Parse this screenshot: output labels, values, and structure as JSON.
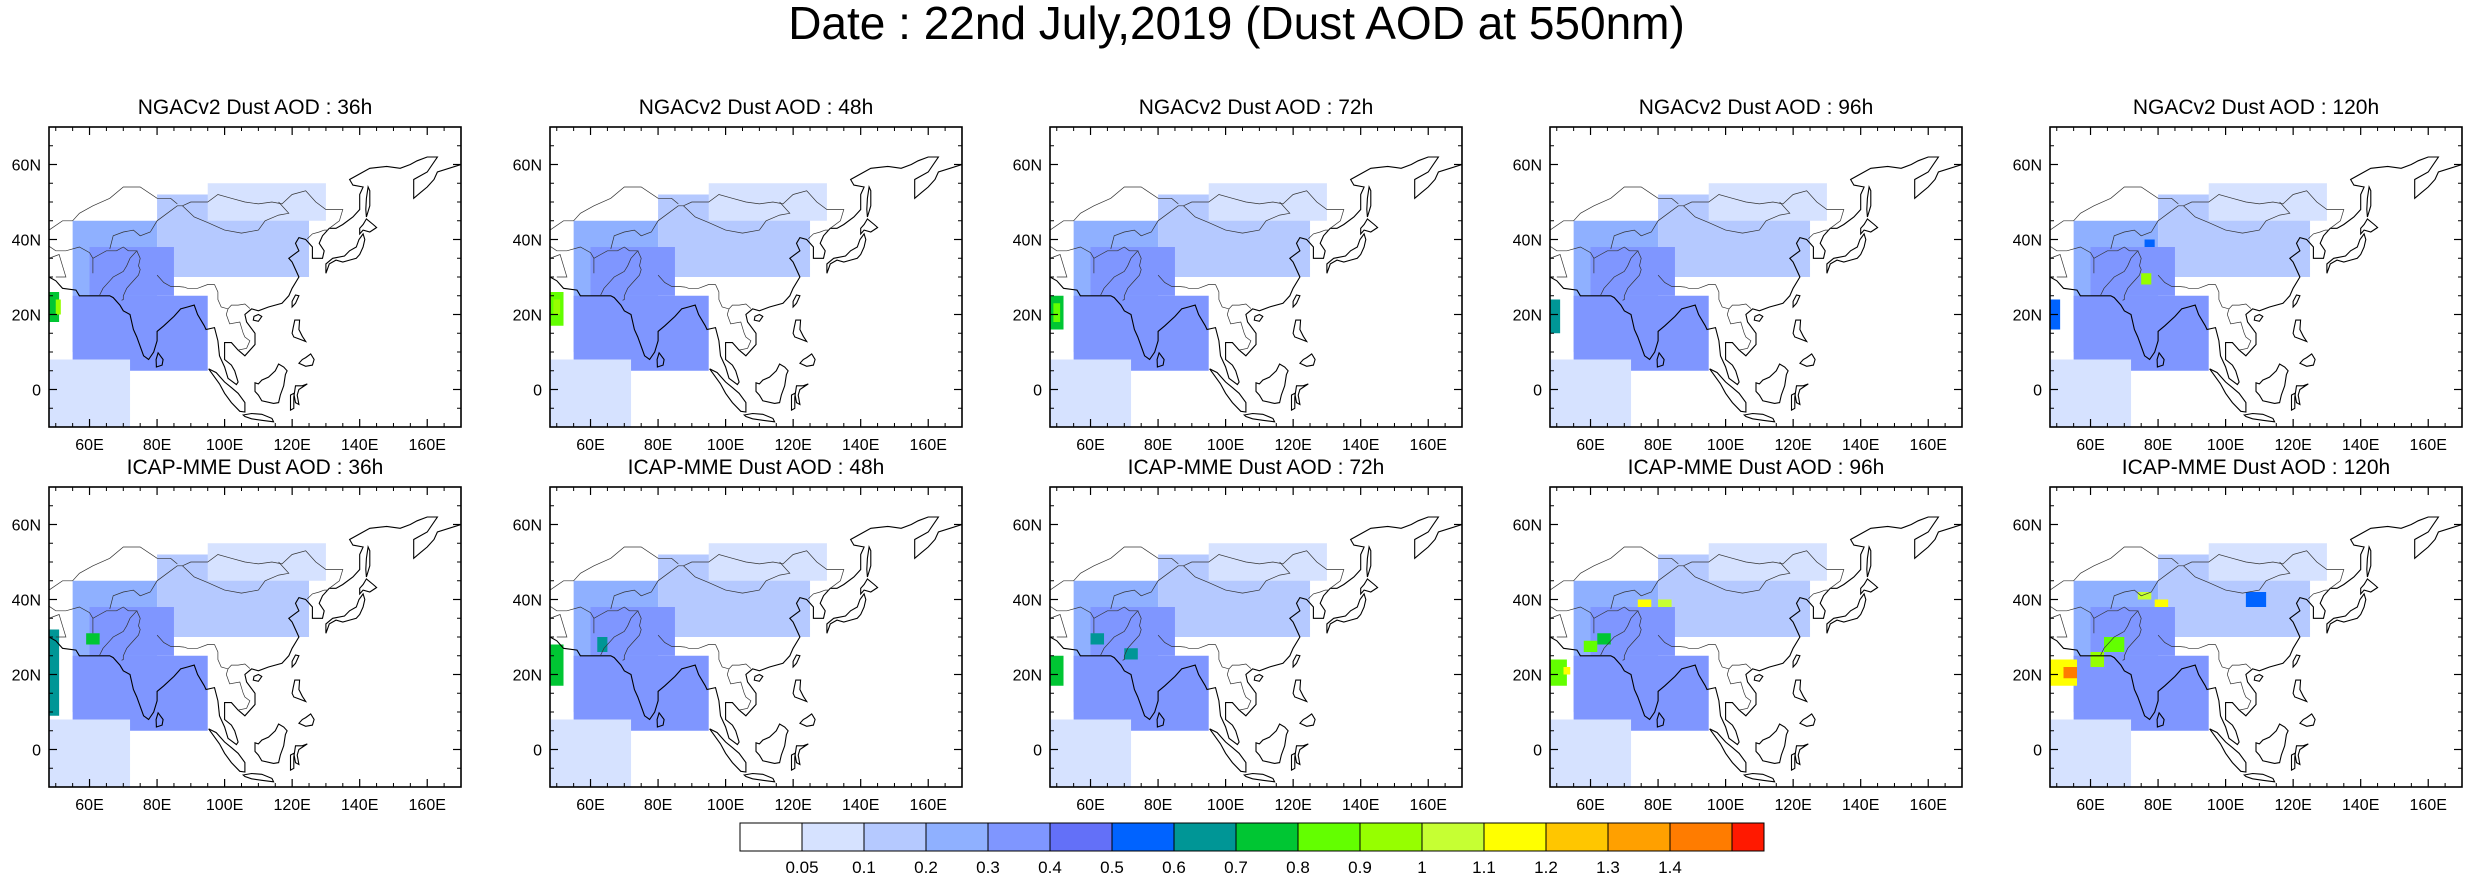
{
  "figure": {
    "title": "Date : 22nd July,2019 (Dust AOD at 550nm)"
  },
  "panels": [
    {
      "title": "NGACv2 Dust AOD : 36h",
      "model": "NGACv2",
      "lead": "36h"
    },
    {
      "title": "NGACv2 Dust AOD : 48h",
      "model": "NGACv2",
      "lead": "48h"
    },
    {
      "title": "NGACv2 Dust AOD : 72h",
      "model": "NGACv2",
      "lead": "72h"
    },
    {
      "title": "NGACv2 Dust AOD : 96h",
      "model": "NGACv2",
      "lead": "96h"
    },
    {
      "title": "NGACv2 Dust AOD : 120h",
      "model": "NGACv2",
      "lead": "120h"
    },
    {
      "title": "ICAP-MME Dust AOD : 36h",
      "model": "ICAP-MME",
      "lead": "36h"
    },
    {
      "title": "ICAP-MME Dust AOD : 48h",
      "model": "ICAP-MME",
      "lead": "48h"
    },
    {
      "title": "ICAP-MME Dust AOD : 72h",
      "model": "ICAP-MME",
      "lead": "72h"
    },
    {
      "title": "ICAP-MME Dust AOD : 96h",
      "model": "ICAP-MME",
      "lead": "96h"
    },
    {
      "title": "ICAP-MME Dust AOD : 120h",
      "model": "ICAP-MME",
      "lead": "120h"
    }
  ],
  "map_axes": {
    "lon_ticks": [
      60,
      80,
      100,
      120,
      140,
      160
    ],
    "lon_labels": [
      "60E",
      "80E",
      "100E",
      "120E",
      "140E",
      "160E"
    ],
    "lat_ticks": [
      0,
      20,
      40,
      60
    ],
    "lat_labels": [
      "0",
      "20N",
      "40N",
      "60N"
    ],
    "lon_range": [
      48,
      170
    ],
    "lat_range": [
      -10,
      70
    ]
  },
  "colorbar": {
    "labels": [
      "0.05",
      "0.1",
      "0.2",
      "0.3",
      "0.4",
      "0.5",
      "0.6",
      "0.7",
      "0.8",
      "0.9",
      "1",
      "1.1",
      "1.2",
      "1.3",
      "1.4"
    ],
    "colors": [
      "#ffffff",
      "#d6e2ff",
      "#b5c9ff",
      "#8fb0ff",
      "#7f96ff",
      "#6370f8",
      "#0063ff",
      "#009696",
      "#00c633",
      "#63ff00",
      "#96ff00",
      "#c6ff33",
      "#ffff00",
      "#ffc600",
      "#ffa000",
      "#ff7c00",
      "#ff1900"
    ]
  }
}
